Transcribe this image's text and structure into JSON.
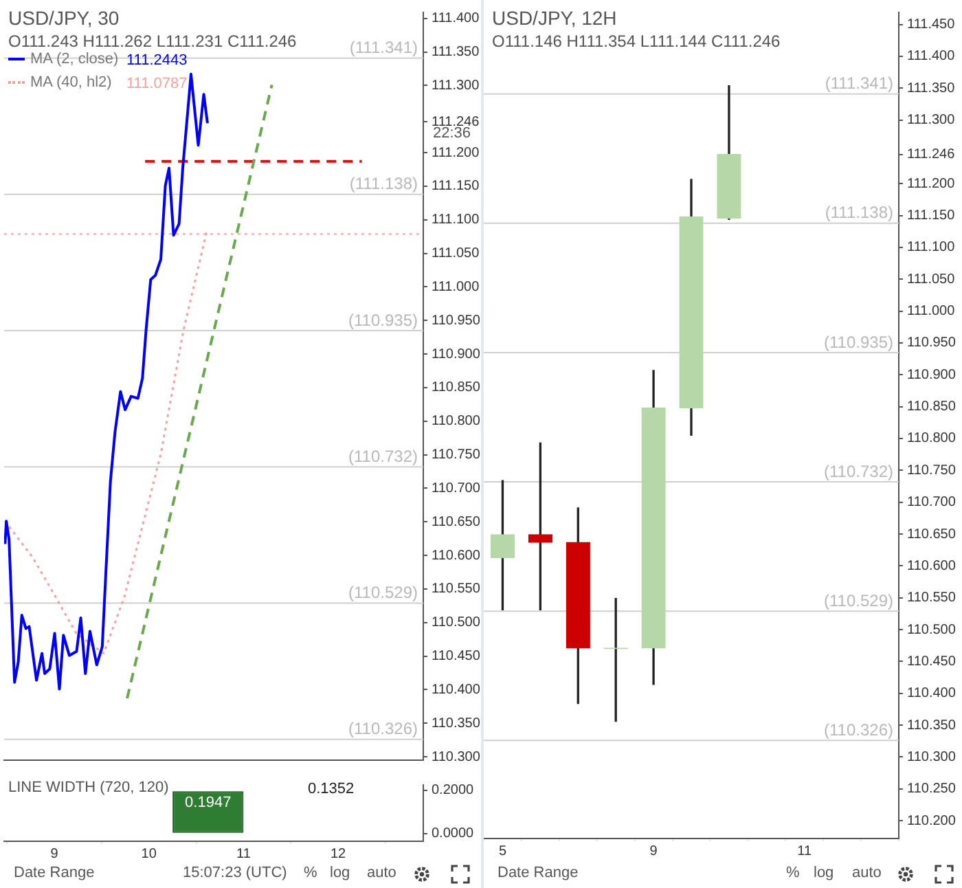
{
  "chart_data": [
    {
      "type": "line",
      "title": "USD/JPY, 30",
      "subtitle": "O111.243 H111.262 L111.231 C111.246",
      "xlim": [
        8.47,
        12.9
      ],
      "ylim": [
        110.295,
        111.409
      ],
      "yticks": [
        {
          "value": 110.3,
          "label": "110.300"
        },
        {
          "value": 110.35,
          "label": "110.350"
        },
        {
          "value": 110.4,
          "label": "110.400"
        },
        {
          "value": 110.45,
          "label": "110.450"
        },
        {
          "value": 110.5,
          "label": "110.500"
        },
        {
          "value": 110.55,
          "label": "110.550"
        },
        {
          "value": 110.6,
          "label": "110.600"
        },
        {
          "value": 110.65,
          "label": "110.650"
        },
        {
          "value": 110.7,
          "label": "110.700"
        },
        {
          "value": 110.75,
          "label": "110.750"
        },
        {
          "value": 110.8,
          "label": "110.800"
        },
        {
          "value": 110.85,
          "label": "110.850"
        },
        {
          "value": 110.9,
          "label": "110.900"
        },
        {
          "value": 110.95,
          "label": "110.950"
        },
        {
          "value": 111.0,
          "label": "111.000"
        },
        {
          "value": 111.05,
          "label": "111.050"
        },
        {
          "value": 111.1,
          "label": "111.100"
        },
        {
          "value": 111.15,
          "label": "111.150"
        },
        {
          "value": 111.2,
          "label": "111.200"
        },
        {
          "value": 111.246,
          "label": "111.246"
        },
        {
          "value": 111.3,
          "label": "111.300"
        },
        {
          "value": 111.35,
          "label": "111.350"
        },
        {
          "value": 111.4,
          "label": "111.400"
        }
      ],
      "tick_labels": "y",
      "grid": false,
      "legend": "top left",
      "marker": "none",
      "series": [
        {
          "name": "MA (2, close)",
          "color": "#0000ff",
          "x": [
            8.48,
            8.493,
            8.522,
            8.58,
            8.619,
            8.657,
            8.7,
            8.735,
            8.812,
            8.87,
            8.899,
            8.952,
            9.004,
            9.054,
            9.097,
            9.159,
            9.236,
            9.28,
            9.329,
            9.377,
            9.449,
            9.507,
            9.546,
            9.594,
            9.642,
            9.7,
            9.749,
            9.812,
            9.884,
            9.932,
            9.971,
            10.019,
            10.068,
            10.126,
            10.174,
            10.213,
            10.261,
            10.319,
            10.358,
            10.445,
            10.522,
            10.58,
            10.619
          ],
          "values": [
            110.617,
            110.651,
            110.624,
            110.411,
            110.441,
            110.511,
            110.491,
            110.494,
            110.414,
            110.454,
            110.424,
            110.431,
            110.484,
            110.401,
            110.481,
            110.451,
            110.457,
            110.507,
            110.424,
            110.487,
            110.437,
            110.464,
            110.577,
            110.711,
            110.784,
            110.844,
            110.817,
            110.837,
            110.834,
            110.864,
            110.937,
            111.011,
            111.017,
            111.041,
            111.151,
            111.177,
            111.077,
            111.094,
            111.177,
            111.317,
            111.211,
            111.287,
            111.244
          ]
        },
        {
          "name": "MA (40, hl2)",
          "color": "#f4a0a0",
          "line_style": "dotted",
          "x": [
            8.48,
            8.772,
            9.019,
            9.232,
            9.522,
            9.739,
            10.126,
            10.368,
            10.609
          ],
          "values": [
            110.651,
            110.597,
            110.537,
            110.484,
            110.454,
            110.537,
            110.751,
            110.937,
            111.081
          ]
        },
        {
          "color": "#6aa84f",
          "line_style": "dashed",
          "x": [
            9.77,
            11.3
          ],
          "values": [
            110.387,
            111.301
          ]
        },
        {
          "color": "#ff0000",
          "line_style": "dashed",
          "x": [
            9.96,
            12.25
          ],
          "values": [
            111.187,
            111.187
          ]
        }
      ],
      "ref_lines": [
        {
          "axis": "y",
          "value": 111.341,
          "label": "(111.341)",
          "color": "#d0d0d0"
        },
        {
          "axis": "y",
          "value": 111.138,
          "label": "(111.138)",
          "color": "#d0d0d0"
        },
        {
          "axis": "y",
          "value": 110.935,
          "label": "(110.935)",
          "color": "#d0d0d0"
        },
        {
          "axis": "y",
          "value": 110.732,
          "label": "(110.732)",
          "color": "#d0d0d0"
        },
        {
          "axis": "y",
          "value": 110.529,
          "label": "(110.529)",
          "color": "#d0d0d0"
        },
        {
          "axis": "y",
          "value": 110.326,
          "label": "(110.326)",
          "color": "#d0d0d0"
        },
        {
          "axis": "y",
          "value": 111.0787,
          "color": "#f4a0a0",
          "line_style": "dotted"
        }
      ],
      "annotations": [
        "111.2443",
        "111.0787",
        "22:36"
      ]
    },
    {
      "type": "histogram",
      "title": "LINE WIDTH (720, 120)",
      "bins": [
        10.25,
        11.0
      ],
      "values": [
        0.1947
      ],
      "color": "#2e7d32",
      "xlim": [
        8.47,
        12.9
      ],
      "xticks": [
        9,
        10,
        11,
        12
      ],
      "ylim": [
        -0.036,
        0.224
      ],
      "yticks": [
        {
          "value": 0,
          "label": "0.0000"
        },
        {
          "value": 0.2,
          "label": "0.2000"
        }
      ],
      "grid": false,
      "data_labels": true,
      "annotations": [
        "0.1352",
        "Date Range",
        "15:07:23 (UTC)",
        "%",
        "log",
        "auto"
      ]
    },
    {
      "type": "candlestick",
      "title": "USD/JPY, 12H",
      "subtitle": "O111.146 H111.354 L111.144 C111.246",
      "categories": [
        "5",
        null,
        null,
        null,
        "9",
        null,
        null,
        null,
        "11",
        null,
        null
      ],
      "ohlc": [
        [
          110.613,
          110.734,
          110.531,
          110.649
        ],
        [
          110.649,
          110.793,
          110.531,
          110.637
        ],
        [
          110.637,
          110.691,
          110.384,
          110.471
        ],
        [
          110.47,
          110.549,
          110.356,
          110.471
        ],
        [
          110.471,
          110.907,
          110.414,
          110.848
        ],
        [
          110.848,
          111.207,
          110.805,
          111.148
        ],
        [
          111.146,
          111.354,
          111.144,
          111.246
        ],
        null,
        null,
        null,
        null
      ],
      "colors": [
        "#b6d7a8",
        "#cc0000",
        "#cc0000",
        "#b6d7a8",
        "#b6d7a8",
        "#b6d7a8",
        "#b6d7a8",
        null,
        null,
        null,
        null
      ],
      "ylim": [
        110.172,
        111.469
      ],
      "yticks": [
        {
          "value": 110.2,
          "label": "110.200"
        },
        {
          "value": 110.25,
          "label": "110.250"
        },
        {
          "value": 110.3,
          "label": "110.300"
        },
        {
          "value": 110.35,
          "label": "110.350"
        },
        {
          "value": 110.4,
          "label": "110.400"
        },
        {
          "value": 110.45,
          "label": "110.450"
        },
        {
          "value": 110.5,
          "label": "110.500"
        },
        {
          "value": 110.55,
          "label": "110.550"
        },
        {
          "value": 110.6,
          "label": "110.600"
        },
        {
          "value": 110.65,
          "label": "110.650"
        },
        {
          "value": 110.7,
          "label": "110.700"
        },
        {
          "value": 110.75,
          "label": "110.750"
        },
        {
          "value": 110.8,
          "label": "110.800"
        },
        {
          "value": 110.85,
          "label": "110.850"
        },
        {
          "value": 110.9,
          "label": "110.900"
        },
        {
          "value": 110.95,
          "label": "110.950"
        },
        {
          "value": 111.0,
          "label": "111.000"
        },
        {
          "value": 111.05,
          "label": "111.050"
        },
        {
          "value": 111.1,
          "label": "111.100"
        },
        {
          "value": 111.15,
          "label": "111.150"
        },
        {
          "value": 111.2,
          "label": "111.200"
        },
        {
          "value": 111.246,
          "label": "111.246"
        },
        {
          "value": 111.3,
          "label": "111.300"
        },
        {
          "value": 111.35,
          "label": "111.350"
        },
        {
          "value": 111.4,
          "label": "111.400"
        },
        {
          "value": 111.45,
          "label": "111.450"
        }
      ],
      "grid": false,
      "ref_lines": [
        {
          "axis": "y",
          "value": 111.341,
          "label": "(111.341)",
          "color": "#d0d0d0"
        },
        {
          "axis": "y",
          "value": 111.138,
          "label": "(111.138)",
          "color": "#d0d0d0"
        },
        {
          "axis": "y",
          "value": 110.935,
          "label": "(110.935)",
          "color": "#d0d0d0"
        },
        {
          "axis": "y",
          "value": 110.732,
          "label": "(110.732)",
          "color": "#d0d0d0"
        },
        {
          "axis": "y",
          "value": 110.529,
          "label": "(110.529)",
          "color": "#d0d0d0"
        },
        {
          "axis": "y",
          "value": 110.326,
          "label": "(110.326)",
          "color": "#d0d0d0"
        }
      ],
      "annotations": [
        "Date Range",
        "%",
        "log",
        "auto"
      ]
    }
  ]
}
